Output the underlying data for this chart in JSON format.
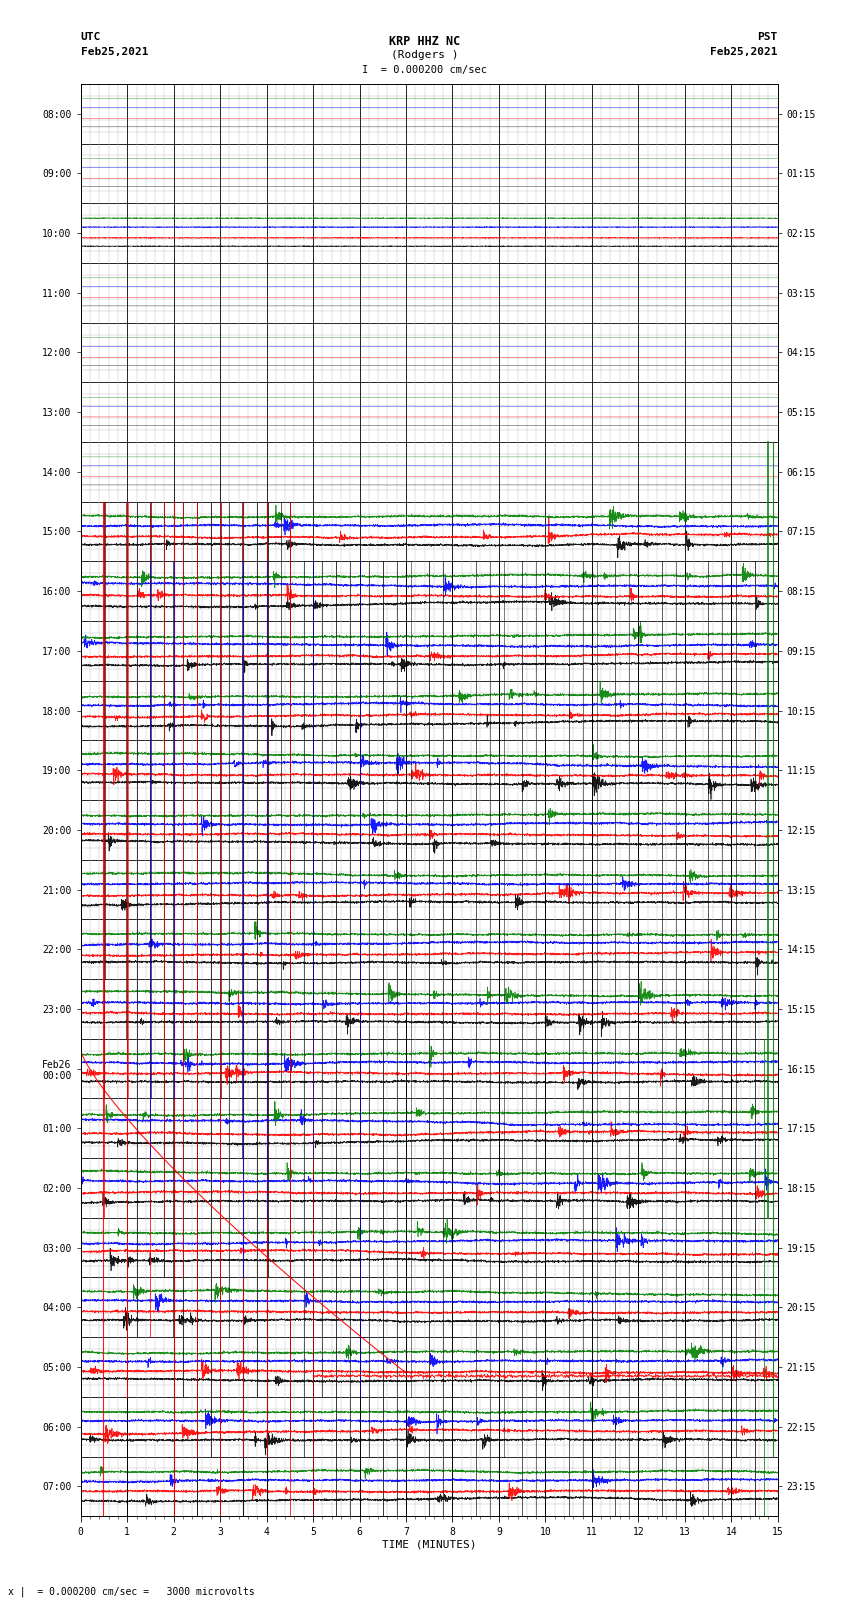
{
  "title_line1": "KRP HHZ NC",
  "title_line2": "(Rodgers )",
  "title_line3": "I  = 0.000200 cm/sec",
  "left_label_top": "UTC",
  "left_label_date": "Feb25,2021",
  "right_label_top": "PST",
  "right_label_date": "Feb25,2021",
  "xlabel": "TIME (MINUTES)",
  "footer_text": "x |  = 0.000200 cm/sec =   3000 microvolts",
  "utc_times": [
    "08:00",
    "09:00",
    "10:00",
    "11:00",
    "12:00",
    "13:00",
    "14:00",
    "15:00",
    "16:00",
    "17:00",
    "18:00",
    "19:00",
    "20:00",
    "21:00",
    "22:00",
    "23:00",
    "Feb26\n00:00",
    "01:00",
    "02:00",
    "03:00",
    "04:00",
    "05:00",
    "06:00",
    "07:00"
  ],
  "pst_times": [
    "00:15",
    "01:15",
    "02:15",
    "03:15",
    "04:15",
    "05:15",
    "06:15",
    "07:15",
    "08:15",
    "09:15",
    "10:15",
    "11:15",
    "12:15",
    "13:15",
    "14:15",
    "15:15",
    "16:15",
    "17:15",
    "18:15",
    "19:15",
    "20:15",
    "21:15",
    "22:15",
    "23:15"
  ],
  "num_rows": 24,
  "xmin": 0,
  "xmax": 15,
  "fig_width": 8.5,
  "fig_height": 16.13,
  "bg_color": "#ffffff",
  "major_grid_color": "#000000",
  "minor_grid_color": "#aaaaaa",
  "seed": 42
}
